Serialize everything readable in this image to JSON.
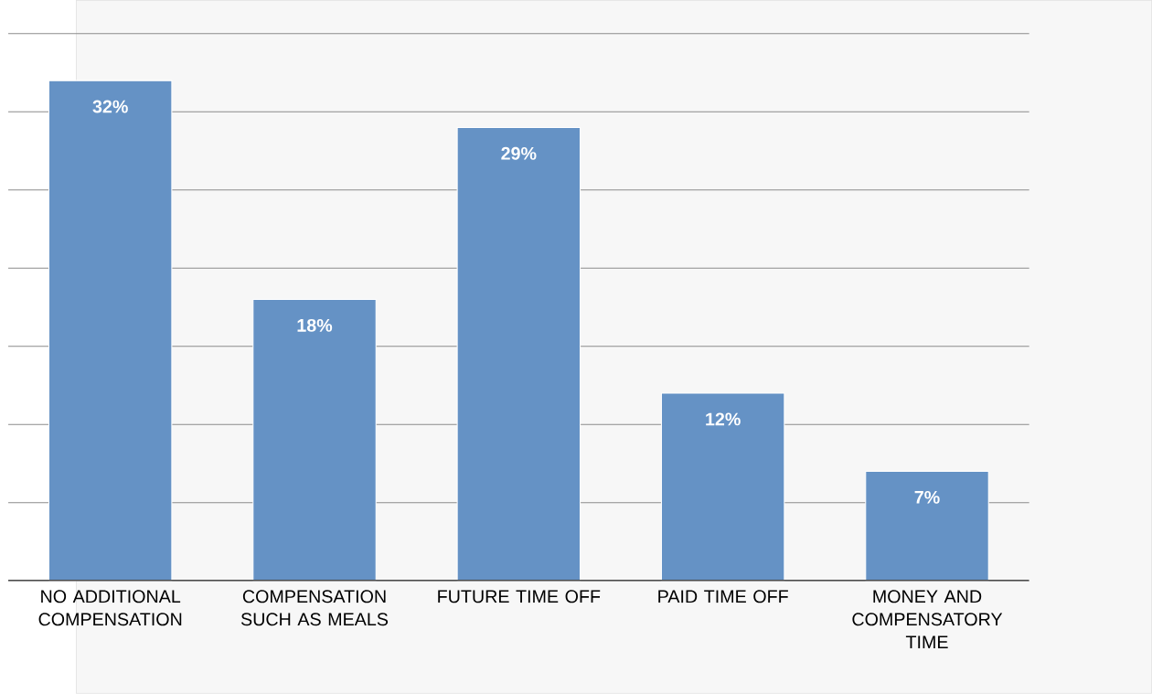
{
  "chart_data": {
    "type": "bar",
    "categories": [
      "NO ADDITIONAL COMPENSATION",
      "COMPENSATION SUCH AS MEALS",
      "FUTURE TIME OFF",
      "PAID TIME OFF",
      "MONEY AND COMPENSATORY TIME"
    ],
    "values": [
      32,
      18,
      29,
      12,
      7
    ],
    "value_labels": [
      "32%",
      "18%",
      "29%",
      "12%",
      "7%"
    ],
    "color": "#6592c5",
    "ylim": [
      0,
      35
    ],
    "yticks": [
      {
        "value": 0,
        "label": null
      },
      {
        "value": 5,
        "label": null
      },
      {
        "value": 10,
        "label": null
      },
      {
        "value": 15,
        "label": null
      },
      {
        "value": 20,
        "label": null
      },
      {
        "value": 25,
        "label": null
      },
      {
        "value": 30,
        "label": null
      },
      {
        "value": 35,
        "label": null
      }
    ],
    "grid": "y",
    "tick_labels": "x"
  }
}
